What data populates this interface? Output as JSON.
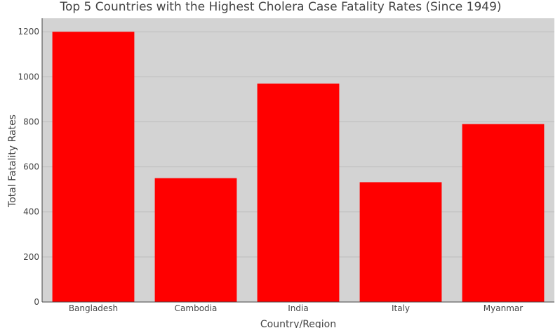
{
  "chart_data": {
    "type": "bar",
    "title": "Top 5 Countries with the Highest Cholera Case Fatality Rates (Since 1949)",
    "xlabel": "Country/Region",
    "ylabel": "Total Fatality Rates",
    "categories": [
      "Bangladesh",
      "Cambodia",
      "India",
      "Italy",
      "Myanmar"
    ],
    "values": [
      1200,
      550,
      970,
      532,
      790
    ],
    "ylim": [
      0,
      1260
    ],
    "yticks": [
      0,
      200,
      400,
      600,
      800,
      1000,
      1200
    ],
    "grid": true,
    "colors": {
      "bar": "#ff0000",
      "plot_background": "#d3d3d3",
      "grid": "#bdbdbd",
      "axis": "#444444"
    }
  }
}
